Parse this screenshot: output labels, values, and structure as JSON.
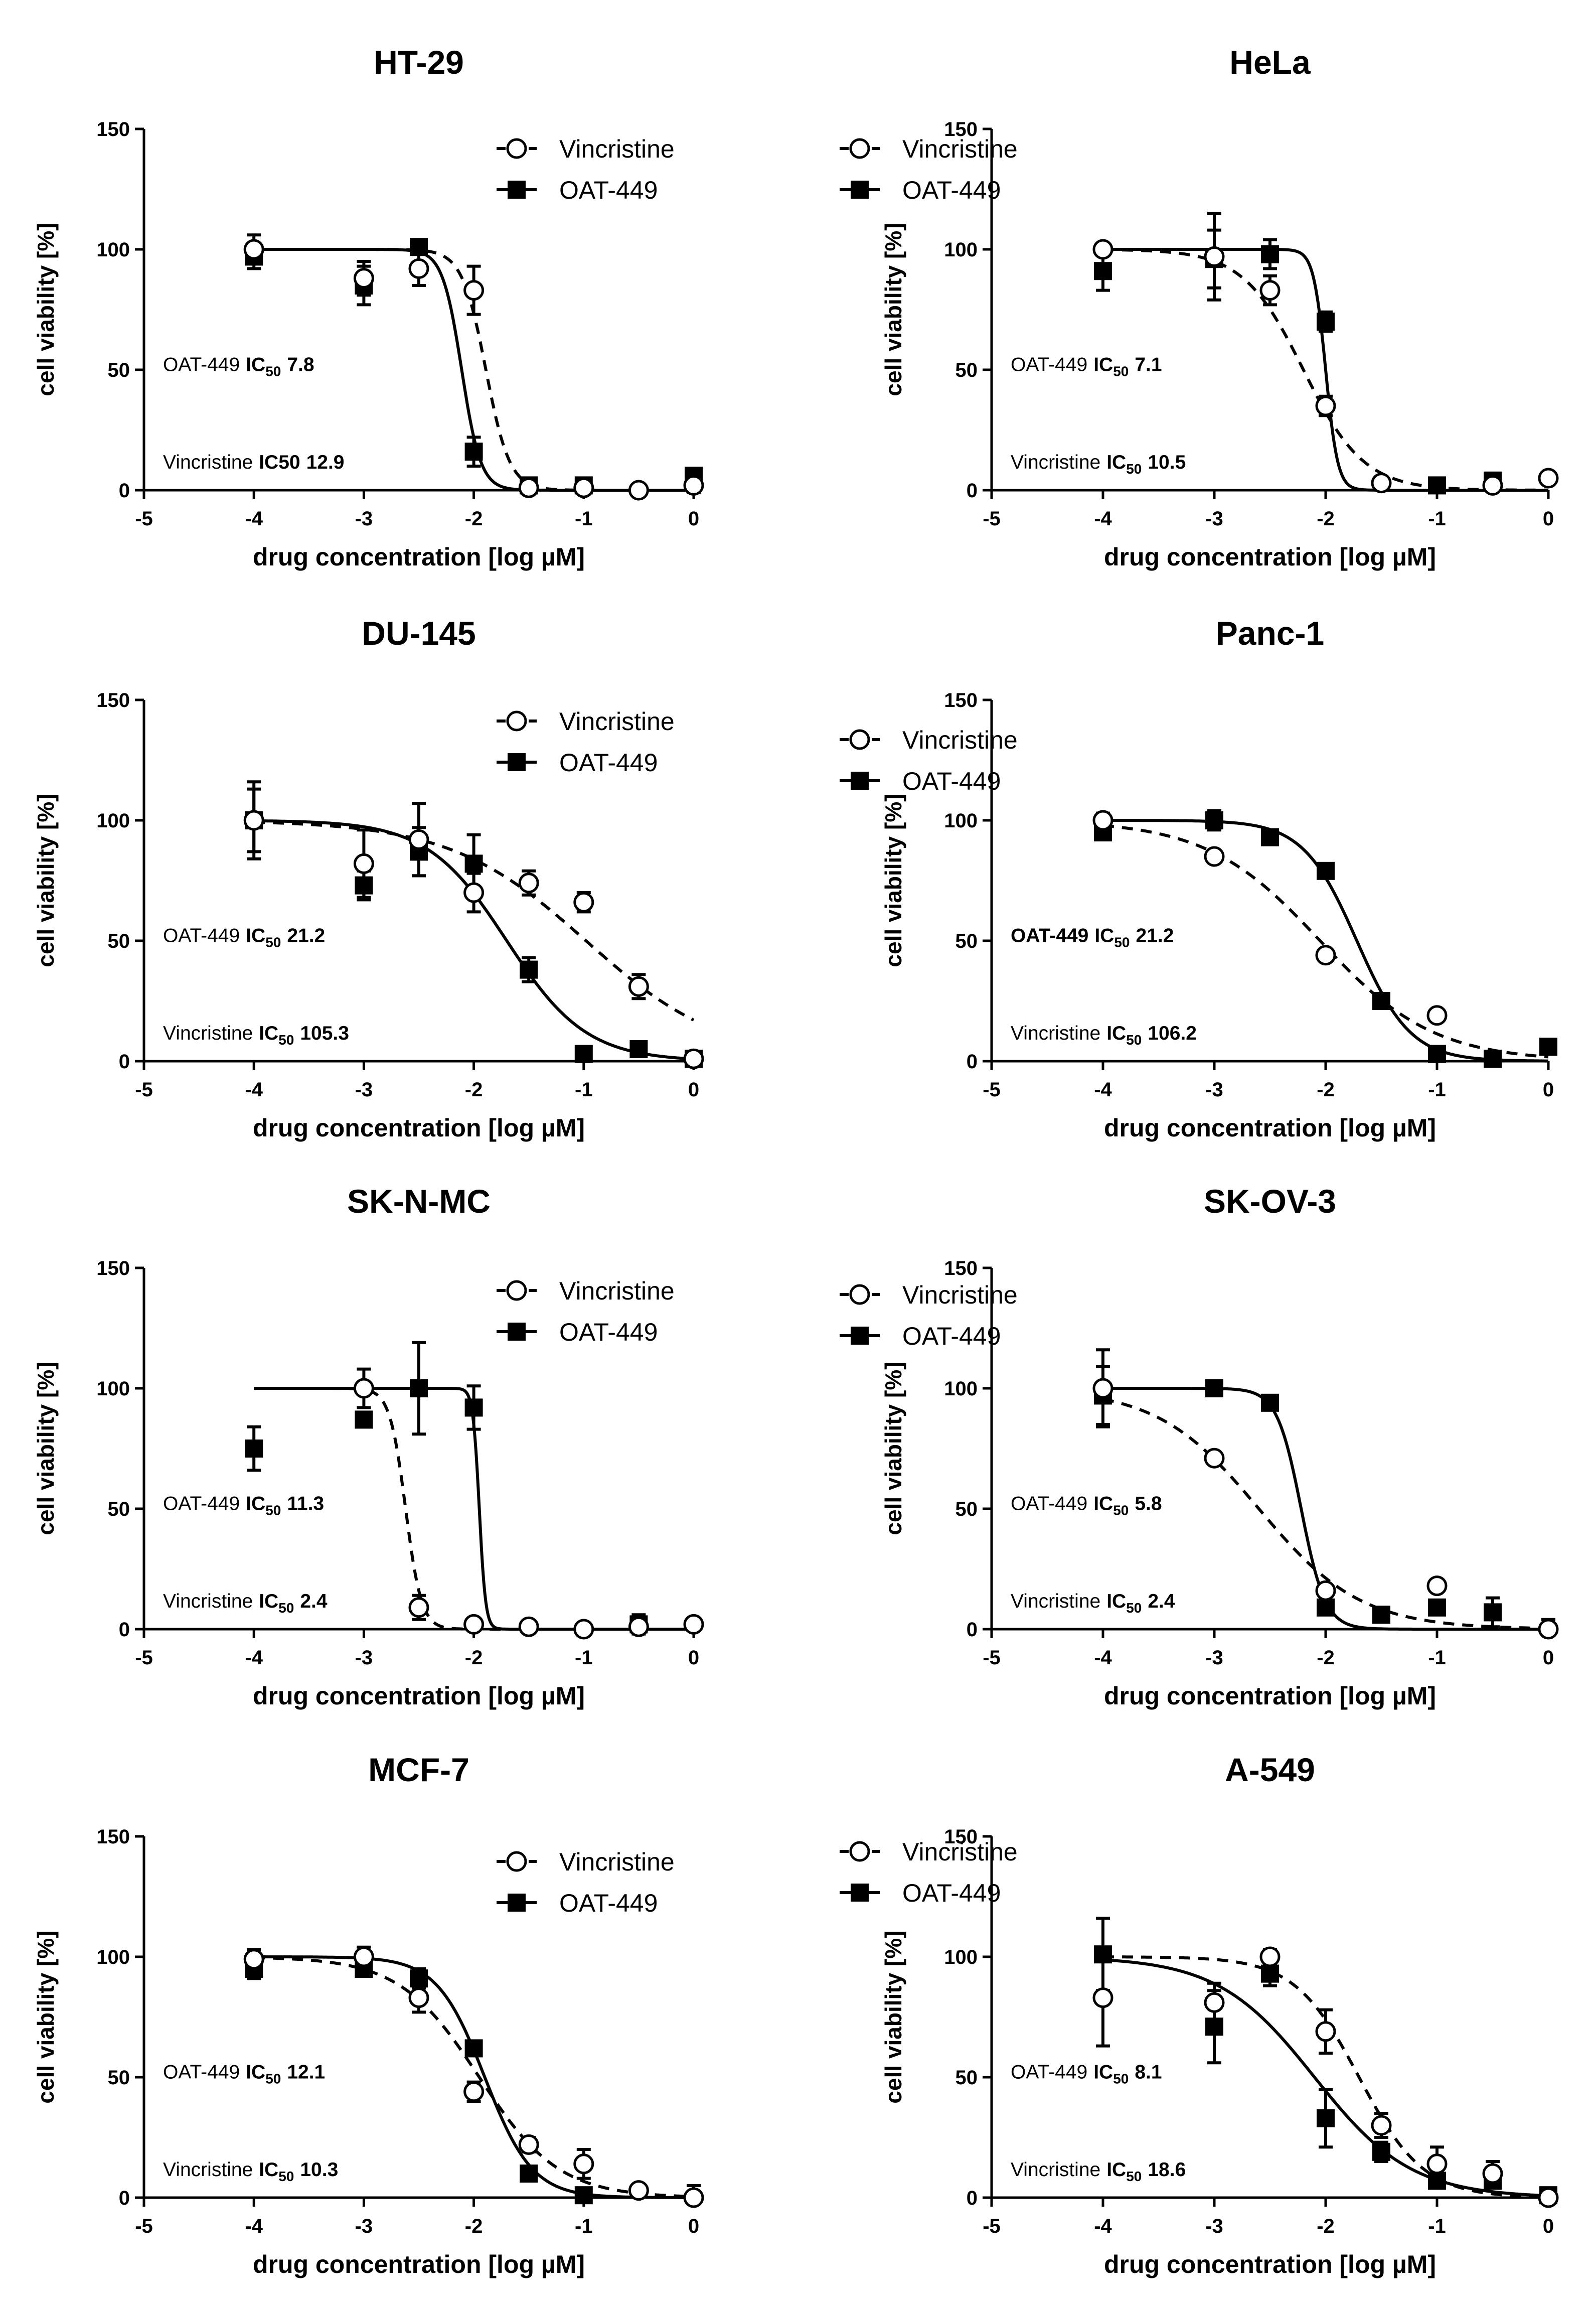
{
  "chart_data": [
    {
      "type": "scatter",
      "title": "HT-29",
      "xlabel": "drug concentration [log µM]",
      "ylabel": "cell viability [%]",
      "xlim": [
        -5,
        0
      ],
      "ylim": [
        0,
        150
      ],
      "xticks": [
        "-5",
        "-4",
        "-3",
        "-2",
        "-1",
        "0"
      ],
      "yticks": [
        "0",
        "50",
        "100",
        "150"
      ],
      "legend": [
        "Vincristine",
        "OAT-449"
      ],
      "annotations": [
        {
          "label": "OAT-449",
          "ic": "IC",
          "sub": "50",
          "value": "7.8"
        },
        {
          "label": "Vincristine",
          "ic": "IC50",
          "sub": "",
          "value": "12.9"
        }
      ],
      "series": [
        {
          "name": "Vincristine",
          "marker": "circle",
          "line": "dashed",
          "fit": {
            "top": 100,
            "bottom": 0,
            "logIC50": -1.89,
            "hill": 4.0
          },
          "x": [
            -4,
            -3,
            -2.5,
            -2,
            -1.5,
            -1,
            -0.5,
            0
          ],
          "y": [
            100,
            88,
            92,
            83,
            1,
            1,
            0,
            2
          ],
          "err": [
            6,
            7,
            7,
            10,
            2,
            2,
            1,
            3
          ]
        },
        {
          "name": "OAT-449",
          "marker": "square",
          "line": "solid",
          "fit": {
            "top": 100,
            "bottom": 0,
            "logIC50": -2.11,
            "hill": 5.0
          },
          "x": [
            -4,
            -3,
            -2.5,
            -2,
            -1.5,
            -1,
            0
          ],
          "y": [
            97,
            85,
            101,
            16,
            2,
            2,
            6
          ],
          "err": [
            5,
            8,
            3,
            6,
            2,
            1,
            2
          ]
        }
      ]
    },
    {
      "type": "scatter",
      "title": "HeLa",
      "xlabel": "drug concentration [log µM]",
      "ylabel": "cell viability [%]",
      "xlim": [
        -5,
        0
      ],
      "ylim": [
        0,
        150
      ],
      "xticks": [
        "-5",
        "-4",
        "-3",
        "-2",
        "-1",
        "0"
      ],
      "yticks": [
        "0",
        "50",
        "100",
        "150"
      ],
      "legend": [
        "Vincristine",
        "OAT-449"
      ],
      "annotations": [
        {
          "label": "OAT-449",
          "ic": "IC",
          "sub": "50",
          "value": "7.1"
        },
        {
          "label": "Vincristine",
          "ic": "IC",
          "sub": "50",
          "value": "10.5"
        }
      ],
      "series": [
        {
          "name": "Vincristine",
          "marker": "circle",
          "line": "dashed",
          "fit": {
            "top": 100,
            "bottom": 0,
            "logIC50": -2.2,
            "hill": 1.6
          },
          "x": [
            -4,
            -3,
            -2.5,
            -2,
            -1.5,
            -0.5,
            0
          ],
          "y": [
            100,
            97,
            83,
            35,
            3,
            2,
            5
          ],
          "err": [
            0,
            18,
            6,
            4,
            1,
            2,
            1
          ]
        },
        {
          "name": "OAT-449",
          "marker": "square",
          "line": "solid",
          "fit": {
            "top": 100,
            "bottom": 0,
            "logIC50": -2.0,
            "hill": 8.0
          },
          "x": [
            -4,
            -3,
            -2.5,
            -2,
            -1,
            -0.5
          ],
          "y": [
            91,
            96,
            98,
            70,
            2,
            4
          ],
          "err": [
            8,
            12,
            6,
            4,
            1,
            2
          ]
        }
      ]
    },
    {
      "type": "scatter",
      "title": "DU-145",
      "xlabel": "drug concentration [log µM]",
      "ylabel": "cell viability [%]",
      "xlim": [
        -5,
        0
      ],
      "ylim": [
        0,
        150
      ],
      "xticks": [
        "-5",
        "-4",
        "-3",
        "-2",
        "-1",
        "0"
      ],
      "yticks": [
        "0",
        "50",
        "100",
        "150"
      ],
      "legend": [
        "Vincristine",
        "OAT-449"
      ],
      "annotations": [
        {
          "label": "OAT-449",
          "ic": "IC",
          "sub": "50",
          "value": "21.2"
        },
        {
          "label": "Vincristine",
          "ic": "IC",
          "sub": "50",
          "value": "105.3"
        }
      ],
      "series": [
        {
          "name": "Vincristine",
          "marker": "circle",
          "line": "dashed",
          "fit": {
            "top": 100,
            "bottom": 0,
            "logIC50": -0.98,
            "hill": 0.7
          },
          "x": [
            -4,
            -3,
            -2.5,
            -2,
            -1.5,
            -1,
            -0.5,
            0
          ],
          "y": [
            100,
            82,
            92,
            70,
            74,
            66,
            31,
            1
          ],
          "err": [
            16,
            14,
            15,
            8,
            5,
            4,
            5,
            2
          ]
        },
        {
          "name": "OAT-449",
          "marker": "square",
          "line": "solid",
          "fit": {
            "top": 100,
            "bottom": 0,
            "logIC50": -1.7,
            "hill": 1.2
          },
          "x": [
            -4,
            -3,
            -2.5,
            -2,
            -1.5,
            -1,
            -0.5,
            0
          ],
          "y": [
            100,
            73,
            87,
            82,
            38,
            3,
            5,
            1
          ],
          "err": [
            13,
            6,
            10,
            12,
            5,
            1,
            1,
            1
          ]
        }
      ]
    },
    {
      "type": "scatter",
      "title": "Panc-1",
      "xlabel": "drug concentration [log µM]",
      "ylabel": "cell viability [%]",
      "xlim": [
        -5,
        0
      ],
      "ylim": [
        0,
        150
      ],
      "xticks": [
        "-5",
        "-4",
        "-3",
        "-2",
        "-1",
        "0"
      ],
      "yticks": [
        "0",
        "50",
        "100",
        "150"
      ],
      "legend": [
        "Vincristine",
        "OAT-449"
      ],
      "annotations": [
        {
          "label": "OAT-449",
          "ic": "IC",
          "sub": "50",
          "value": "21.2",
          "labelBold": true
        },
        {
          "label": "Vincristine",
          "ic": "IC",
          "sub": "50",
          "value": "106.2"
        }
      ],
      "series": [
        {
          "name": "Vincristine",
          "marker": "circle",
          "line": "dashed",
          "fit": {
            "top": 100,
            "bottom": 0,
            "logIC50": -2.05,
            "hill": 0.85
          },
          "x": [
            -4,
            -3,
            -2,
            -1
          ],
          "y": [
            100,
            85,
            44,
            19
          ],
          "err": [
            3,
            2,
            2,
            2
          ]
        },
        {
          "name": "OAT-449",
          "marker": "square",
          "line": "solid",
          "fit": {
            "top": 100,
            "bottom": 0,
            "logIC50": -1.72,
            "hill": 1.8
          },
          "x": [
            -4,
            -3,
            -2.5,
            -2,
            -1.5,
            -1,
            -0.5,
            0
          ],
          "y": [
            95,
            100,
            93,
            79,
            25,
            3,
            1,
            6
          ],
          "err": [
            3,
            4,
            3,
            2,
            2,
            1,
            1,
            1
          ]
        }
      ]
    },
    {
      "type": "scatter",
      "title": "SK-N-MC",
      "xlabel": "drug concentration [log µM]",
      "ylabel": "cell viability [%]",
      "xlim": [
        -5,
        0
      ],
      "ylim": [
        0,
        150
      ],
      "xticks": [
        "-5",
        "-4",
        "-3",
        "-2",
        "-1",
        "0"
      ],
      "yticks": [
        "0",
        "50",
        "100",
        "150"
      ],
      "legend": [
        "Vincristine",
        "OAT-449"
      ],
      "annotations": [
        {
          "label": "OAT-449",
          "ic": "IC",
          "sub": "50",
          "value": "11.3"
        },
        {
          "label": "Vincristine",
          "ic": "IC",
          "sub": "50",
          "value": "2.4"
        }
      ],
      "series": [
        {
          "name": "Vincristine",
          "marker": "circle",
          "line": "dashed",
          "fit": {
            "top": 100,
            "bottom": 0,
            "logIC50": -2.62,
            "hill": 6.0
          },
          "x": [
            -3,
            -2.5,
            -2,
            -1.5,
            -1,
            -0.5,
            0
          ],
          "y": [
            100,
            9,
            2,
            1,
            0,
            1,
            2
          ],
          "err": [
            8,
            5,
            1,
            1,
            1,
            1,
            2
          ]
        },
        {
          "name": "OAT-449",
          "marker": "square",
          "line": "solid",
          "fit": {
            "top": 100,
            "bottom": 0,
            "logIC50": -1.95,
            "hill": 15.0
          },
          "x": [
            -4,
            -3,
            -2.5,
            -2,
            -0.5
          ],
          "y": [
            75,
            87,
            100,
            92,
            2
          ],
          "err": [
            9,
            3,
            19,
            9,
            4
          ]
        }
      ]
    },
    {
      "type": "scatter",
      "title": "SK-OV-3",
      "xlabel": "drug concentration [log µM]",
      "ylabel": "cell viability [%]",
      "xlim": [
        -5,
        0
      ],
      "ylim": [
        0,
        150
      ],
      "xticks": [
        "-5",
        "-4",
        "-3",
        "-2",
        "-1",
        "0"
      ],
      "yticks": [
        "0",
        "50",
        "100",
        "150"
      ],
      "legend": [
        "Vincristine",
        "OAT-449"
      ],
      "annotations": [
        {
          "label": "OAT-449",
          "ic": "IC",
          "sub": "50",
          "value": "5.8"
        },
        {
          "label": "Vincristine",
          "ic": "IC",
          "sub": "50",
          "value": "2.4"
        }
      ],
      "series": [
        {
          "name": "Vincristine",
          "marker": "circle",
          "line": "dashed",
          "fit": {
            "top": 100,
            "bottom": 0,
            "logIC50": -2.6,
            "hill": 0.95
          },
          "x": [
            -4,
            -3,
            -2,
            -1,
            0
          ],
          "y": [
            100,
            71,
            16,
            18,
            0
          ],
          "err": [
            16,
            1,
            2,
            2,
            4
          ]
        },
        {
          "name": "OAT-449",
          "marker": "square",
          "line": "solid",
          "fit": {
            "top": 100,
            "bottom": 0,
            "logIC50": -2.22,
            "hill": 4.0
          },
          "x": [
            -4,
            -3,
            -2.5,
            -2,
            -1.5,
            -1,
            -0.5
          ],
          "y": [
            97,
            100,
            94,
            9,
            6,
            9,
            7
          ],
          "err": [
            12,
            1,
            1,
            3,
            3,
            2,
            6
          ]
        }
      ]
    },
    {
      "type": "scatter",
      "title": "MCF-7",
      "xlabel": "drug concentration [log µM]",
      "ylabel": "cell viability [%]",
      "xlim": [
        -5,
        0
      ],
      "ylim": [
        0,
        150
      ],
      "xticks": [
        "-5",
        "-4",
        "-3",
        "-2",
        "-1",
        "0"
      ],
      "yticks": [
        "0",
        "50",
        "100",
        "150"
      ],
      "legend": [
        "Vincristine",
        "OAT-449"
      ],
      "annotations": [
        {
          "label": "OAT-449",
          "ic": "IC",
          "sub": "50",
          "value": "12.1"
        },
        {
          "label": "Vincristine",
          "ic": "IC",
          "sub": "50",
          "value": "10.3"
        }
      ],
      "series": [
        {
          "name": "Vincristine",
          "marker": "circle",
          "line": "dashed",
          "fit": {
            "top": 100,
            "bottom": 0,
            "logIC50": -1.95,
            "hill": 1.2
          },
          "x": [
            -4,
            -3,
            -2.5,
            -2,
            -1.5,
            -1,
            -0.5,
            0
          ],
          "y": [
            99,
            100,
            83,
            44,
            22,
            14,
            3,
            0
          ],
          "err": [
            4,
            4,
            6,
            4,
            3,
            6,
            2,
            5
          ]
        },
        {
          "name": "OAT-449",
          "marker": "square",
          "line": "solid",
          "fit": {
            "top": 100,
            "bottom": 0,
            "logIC50": -1.9,
            "hill": 2.0
          },
          "x": [
            -4,
            -3,
            -2.5,
            -2,
            -1.5,
            -1
          ],
          "y": [
            95,
            95,
            91,
            62,
            10,
            1
          ],
          "err": [
            4,
            3,
            4,
            2,
            2,
            1
          ]
        }
      ]
    },
    {
      "type": "scatter",
      "title": "A-549",
      "xlabel": "drug concentration [log µM]",
      "ylabel": "cell viability [%]",
      "xlim": [
        -5,
        0
      ],
      "ylim": [
        0,
        150
      ],
      "xticks": [
        "-5",
        "-4",
        "-3",
        "-2",
        "-1",
        "0"
      ],
      "yticks": [
        "0",
        "50",
        "100",
        "150"
      ],
      "legend": [
        "Vincristine",
        "OAT-449"
      ],
      "annotations": [
        {
          "label": "OAT-449",
          "ic": "IC",
          "sub": "50",
          "value": "8.1"
        },
        {
          "label": "Vincristine",
          "ic": "IC",
          "sub": "50",
          "value": "18.6"
        }
      ],
      "series": [
        {
          "name": "Vincristine",
          "marker": "circle",
          "line": "dashed",
          "fit": {
            "top": 100,
            "bottom": 0,
            "logIC50": -1.7,
            "hill": 1.5
          },
          "x": [
            -4,
            -3,
            -2.5,
            -2,
            -1.5,
            -1,
            -0.5,
            0
          ],
          "y": [
            83,
            81,
            100,
            69,
            30,
            14,
            10,
            0
          ],
          "err": [
            20,
            8,
            3,
            9,
            5,
            7,
            5,
            2
          ]
        },
        {
          "name": "OAT-449",
          "marker": "square",
          "line": "solid",
          "fit": {
            "top": 100,
            "bottom": 0,
            "logIC50": -2.1,
            "hill": 1.0
          },
          "x": [
            -4,
            -3,
            -2.5,
            -2,
            -1.5,
            -1,
            -0.5,
            0
          ],
          "y": [
            101,
            71,
            93,
            33,
            19,
            7,
            7,
            1
          ],
          "err": [
            15,
            15,
            5,
            12,
            4,
            3,
            3,
            1
          ]
        }
      ]
    }
  ]
}
